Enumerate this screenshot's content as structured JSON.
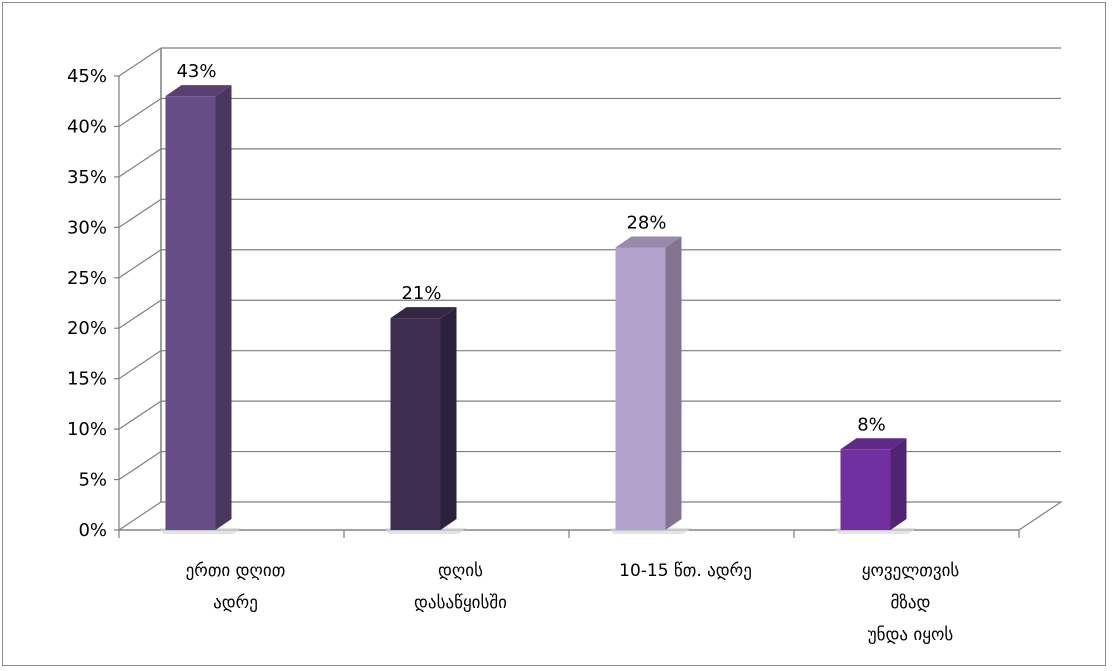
{
  "chart_data": {
    "type": "bar",
    "style": "3d-column",
    "categories": [
      [
        "ერთი დღით",
        "ადრე"
      ],
      [
        "დღის",
        "დასაწყისში"
      ],
      [
        "10-15 წთ. ადრე"
      ],
      [
        "ყოველთვის",
        "მზად",
        "უნდა იყოს"
      ]
    ],
    "values": [
      43,
      21,
      28,
      8
    ],
    "data_labels": [
      "43%",
      "21%",
      "28%",
      "8%"
    ],
    "bar_colors": [
      "#674d86",
      "#3d2e50",
      "#b3a2cb",
      "#7030a0"
    ],
    "ylim": [
      0,
      45
    ],
    "yticks": [
      0,
      5,
      10,
      15,
      20,
      25,
      30,
      35,
      40,
      45
    ],
    "ytick_labels": [
      "0%",
      "5%",
      "10%",
      "15%",
      "20%",
      "25%",
      "30%",
      "35%",
      "40%",
      "45%"
    ],
    "grid": true,
    "legend": "none"
  }
}
